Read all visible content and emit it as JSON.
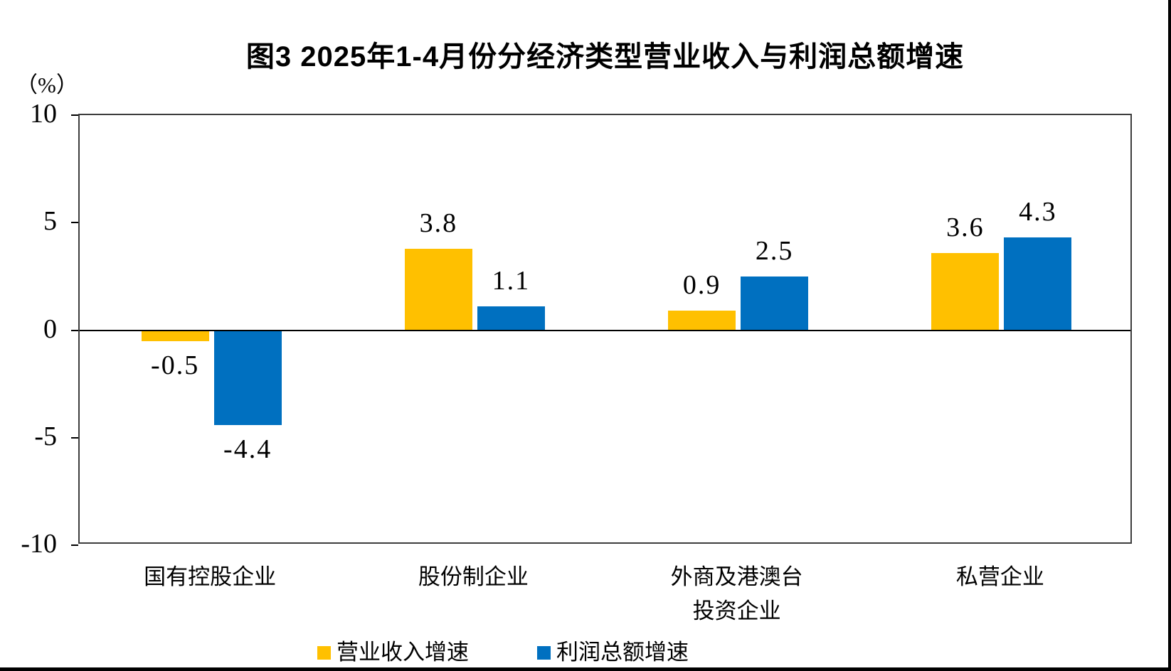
{
  "chart_data": {
    "type": "bar",
    "title": "图3 2025年1-4月份分经济类型营业收入与利润总额增速",
    "unit_label": "（%）",
    "categories": [
      "国有控股企业",
      "股份制企业",
      "外商及港澳台\n投资企业",
      "私营企业"
    ],
    "series": [
      {
        "name": "营业收入增速",
        "color": "#FFC000",
        "values": [
          -0.5,
          3.8,
          0.9,
          3.6
        ]
      },
      {
        "name": "利润总额增速",
        "color": "#0070C0",
        "values": [
          -4.4,
          1.1,
          2.5,
          4.3
        ]
      }
    ],
    "value_labels": [
      "-0.5",
      "-4.4",
      "3.8",
      "1.1",
      "0.9",
      "2.5",
      "3.6",
      "4.3"
    ],
    "ylabel": "（%）",
    "xlabel": "",
    "ylim": [
      -10,
      10
    ],
    "yticks": [
      10,
      5,
      0,
      -5,
      -10
    ],
    "grid": false,
    "legend_position": "bottom"
  },
  "page": {
    "border_color": "#000000"
  }
}
